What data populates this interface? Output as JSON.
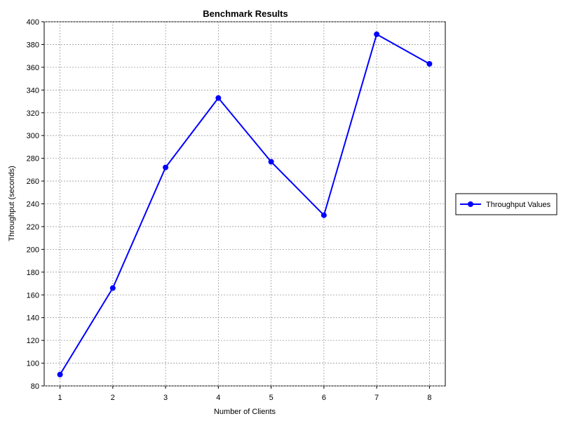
{
  "chart_data": {
    "type": "line",
    "title": "Benchmark Results",
    "xlabel": "Number of Clients",
    "ylabel": "Throughput (seconds)",
    "x": [
      1,
      2,
      3,
      4,
      5,
      6,
      7,
      8
    ],
    "xticks": [
      "1",
      "2",
      "3",
      "4",
      "5",
      "6",
      "7",
      "8"
    ],
    "xlim": [
      0.7,
      8.3
    ],
    "ylim": [
      80,
      400
    ],
    "yticks": [
      80,
      100,
      120,
      140,
      160,
      180,
      200,
      220,
      240,
      260,
      280,
      300,
      320,
      340,
      360,
      380,
      400
    ],
    "grid": true,
    "legend_position": "right",
    "series": [
      {
        "name": "Throughput Values",
        "color": "#0000ff",
        "values": [
          90,
          166,
          272,
          333,
          277,
          230,
          389,
          363
        ]
      }
    ]
  }
}
